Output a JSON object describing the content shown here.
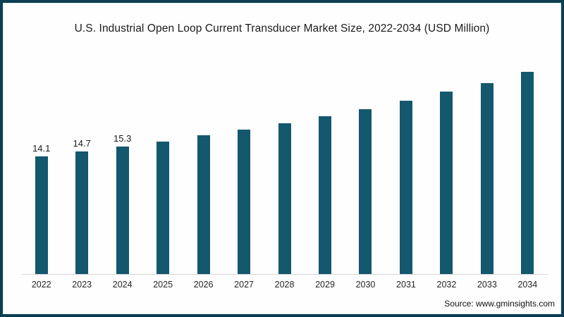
{
  "header": {
    "title": "U.S. Industrial Open Loop Current Transducer Market Size, 2022-2034 (USD Million)"
  },
  "footer": {
    "source": "Source: www.gminsights.com"
  },
  "colors": {
    "bar": "#14586e",
    "frame_border": "#0d3e52",
    "axis_line": "#d8d8d8",
    "background": "#fefefe"
  },
  "chart_data": {
    "type": "bar",
    "title": "U.S. Industrial Open Loop Current Transducer Market Size, 2022-2034 (USD Million)",
    "xlabel": "",
    "ylabel": "",
    "categories": [
      "2022",
      "2023",
      "2024",
      "2025",
      "2026",
      "2027",
      "2028",
      "2029",
      "2030",
      "2031",
      "2032",
      "2033",
      "2034"
    ],
    "values": [
      14.1,
      14.7,
      15.3,
      15.9,
      16.6,
      17.3,
      18.1,
      18.9,
      19.8,
      20.8,
      21.9,
      22.9,
      24.2
    ],
    "data_labels": [
      "14.1",
      "14.7",
      "15.3",
      "",
      "",
      "",
      "",
      "",
      "",
      "",
      "",
      "",
      ""
    ],
    "ylim": [
      0,
      25
    ],
    "grid": false,
    "legend": "none",
    "bar_color": "#14586e"
  }
}
